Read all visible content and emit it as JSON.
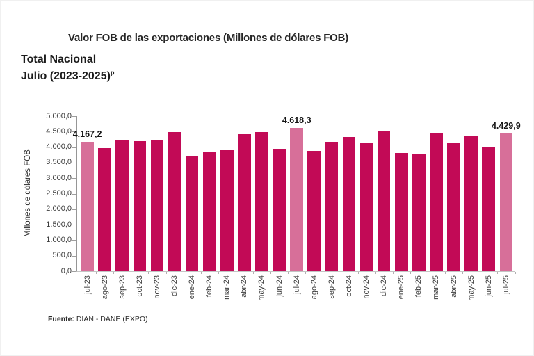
{
  "header": {
    "title": "Valor FOB de las exportaciones (Millones de dólares FOB)",
    "subtitle": "Total Nacional",
    "period": "Julio (2023-2025)",
    "period_superscript": "p"
  },
  "chart_data": {
    "type": "bar",
    "title": "Valor FOB de las exportaciones (Millones de dólares FOB)",
    "xlabel": "",
    "ylabel": "Millones de dólares FOB",
    "ylim": [
      0,
      5000
    ],
    "ytick_step": 500,
    "ytick_labels": [
      "5.000,0",
      "4.500,0",
      "4.000,0",
      "3.500,0",
      "3.000,0",
      "2.500,0",
      "2.000,0",
      "1.500,0",
      "1.000,0",
      "500,0",
      "0,0"
    ],
    "grid": false,
    "legend": false,
    "categories": [
      "jul-23",
      "ago-23",
      "sep-23",
      "oct-23",
      "nov-23",
      "dic-23",
      "ene-24",
      "feb-24",
      "mar-24",
      "abr-24",
      "may-24",
      "jun-24",
      "jul-24",
      "ago-24",
      "sep-24",
      "oct-24",
      "nov-24",
      "dic-24",
      "ene-25",
      "feb-25",
      "mar-25",
      "abr-25",
      "may-25",
      "jun-25",
      "jul-25"
    ],
    "values": [
      4167.2,
      3960,
      4210,
      4185,
      4235,
      4475,
      3705,
      3835,
      3895,
      4425,
      4495,
      3950,
      4618.3,
      3890,
      4180,
      4330,
      4145,
      4500,
      3820,
      3785,
      4440,
      4140,
      4380,
      4000,
      4429.9
    ],
    "bar_value_labels": [
      "4.167,2",
      null,
      null,
      null,
      null,
      null,
      null,
      null,
      null,
      null,
      null,
      null,
      "4.618,3",
      null,
      null,
      null,
      null,
      null,
      null,
      null,
      null,
      null,
      null,
      null,
      "4.429,9"
    ],
    "highlighted_indices": [
      0,
      12,
      24
    ],
    "colors": {
      "bar": "#C20A56",
      "bar_highlight": "#D76F99"
    }
  },
  "footer": {
    "label": "Fuente:",
    "text": "DIAN - DANE (EXPO)"
  }
}
